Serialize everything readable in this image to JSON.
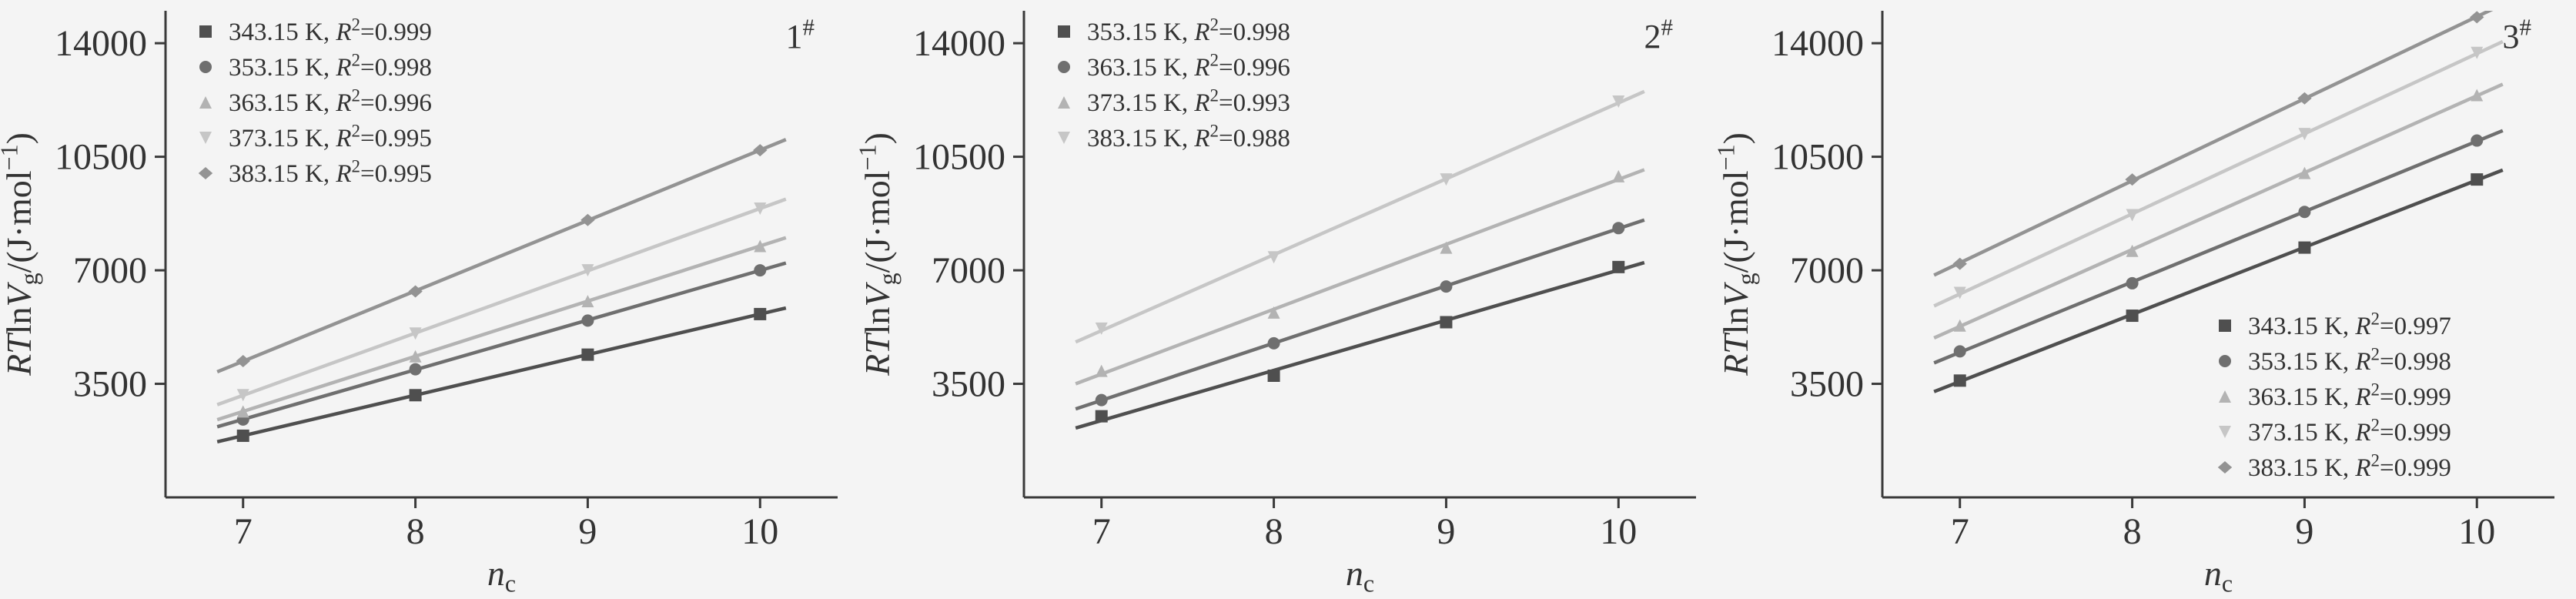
{
  "figure": {
    "background": "#f4f4f4",
    "axis_color": "#3a3a3a",
    "text_color": "#333333"
  },
  "chart_data": [
    {
      "type": "scatter",
      "panel_label": "1#",
      "panel_label_tokens": [
        {
          "t": "1"
        },
        {
          "t": "#",
          "s": "sup"
        }
      ],
      "xlabel": "nc",
      "xlabel_tokens": [
        {
          "t": "n",
          "s": "i"
        },
        {
          "t": "c",
          "s": "sub"
        }
      ],
      "ylabel": "RTlnVg/(J·mol⁻¹)",
      "ylabel_tokens": [
        {
          "t": "RT",
          "s": "i"
        },
        {
          "t": "ln"
        },
        {
          "t": "V",
          "s": "i"
        },
        {
          "t": "g",
          "s": "sub"
        },
        {
          "t": "/(J·mol"
        },
        {
          "t": "−1",
          "s": "sup"
        },
        {
          "t": ")"
        }
      ],
      "xlim": [
        6.55,
        10.45
      ],
      "ylim": [
        0,
        15000
      ],
      "x_ticks": [
        7,
        8,
        9,
        10
      ],
      "y_ticks": [
        3500,
        7000,
        10500,
        14000
      ],
      "grid": false,
      "legend_position": "top-left",
      "x": [
        7,
        8,
        9,
        10
      ],
      "series": [
        {
          "name": "343.15 K",
          "r2": "0.999",
          "label": "343.15 K, R²=0.999",
          "marker": "square",
          "color": "#4f4f4f",
          "values": [
            1900,
            3150,
            4400,
            5650
          ]
        },
        {
          "name": "353.15 K",
          "r2": "0.998",
          "label": "353.15 K, R²=0.998",
          "marker": "circle",
          "color": "#6f6f6f",
          "values": [
            2400,
            3950,
            5450,
            7000
          ]
        },
        {
          "name": "363.15 K",
          "r2": "0.996",
          "label": "363.15 K, R²=0.996",
          "marker": "triangle-up",
          "color": "#b3b3b3",
          "values": [
            2650,
            4350,
            6050,
            7750
          ]
        },
        {
          "name": "373.15 K",
          "r2": "0.995",
          "label": "373.15 K, R²=0.995",
          "marker": "triangle-down",
          "color": "#c6c6c6",
          "values": [
            3150,
            5050,
            7000,
            8900
          ]
        },
        {
          "name": "383.15 K",
          "r2": "0.995",
          "label": "383.15 K, R²=0.995",
          "marker": "diamond",
          "color": "#939393",
          "values": [
            4200,
            6350,
            8550,
            10700
          ]
        }
      ]
    },
    {
      "type": "scatter",
      "panel_label": "2#",
      "panel_label_tokens": [
        {
          "t": "2"
        },
        {
          "t": "#",
          "s": "sup"
        }
      ],
      "xlabel": "nc",
      "xlabel_tokens": [
        {
          "t": "n",
          "s": "i"
        },
        {
          "t": "c",
          "s": "sub"
        }
      ],
      "ylabel": "RTlnVg/(J·mol⁻¹)",
      "ylabel_tokens": [
        {
          "t": "RT",
          "s": "i"
        },
        {
          "t": "ln"
        },
        {
          "t": "V",
          "s": "i"
        },
        {
          "t": "g",
          "s": "sub"
        },
        {
          "t": "/(J·mol"
        },
        {
          "t": "−1",
          "s": "sup"
        },
        {
          "t": ")"
        }
      ],
      "xlim": [
        6.55,
        10.45
      ],
      "ylim": [
        0,
        15000
      ],
      "x_ticks": [
        7,
        8,
        9,
        10
      ],
      "y_ticks": [
        3500,
        7000,
        10500,
        14000
      ],
      "grid": false,
      "legend_position": "top-left",
      "x": [
        7,
        8,
        9,
        10
      ],
      "series": [
        {
          "name": "353.15 K",
          "r2": "0.998",
          "label": "353.15 K, R²=0.998",
          "marker": "square",
          "color": "#4f4f4f",
          "values": [
            2500,
            3750,
            5400,
            7100
          ]
        },
        {
          "name": "363.15 K",
          "r2": "0.996",
          "label": "363.15 K, R²=0.996",
          "marker": "circle",
          "color": "#6f6f6f",
          "values": [
            3000,
            4750,
            6500,
            8300
          ]
        },
        {
          "name": "373.15 K",
          "r2": "0.993",
          "label": "373.15 K, R²=0.993",
          "marker": "triangle-up",
          "color": "#b3b3b3",
          "values": [
            3900,
            5700,
            7700,
            9900
          ]
        },
        {
          "name": "383.15 K",
          "r2": "0.988",
          "label": "383.15 K, R²=0.988",
          "marker": "triangle-down",
          "color": "#c6c6c6",
          "values": [
            5200,
            7400,
            9800,
            12200
          ]
        }
      ]
    },
    {
      "type": "scatter",
      "panel_label": "3#",
      "panel_label_tokens": [
        {
          "t": "3"
        },
        {
          "t": "#",
          "s": "sup"
        }
      ],
      "xlabel": "nc",
      "xlabel_tokens": [
        {
          "t": "n",
          "s": "i"
        },
        {
          "t": "c",
          "s": "sub"
        }
      ],
      "ylabel": "RTlnVg/(J·mol⁻¹)",
      "ylabel_tokens": [
        {
          "t": "RT",
          "s": "i"
        },
        {
          "t": "ln"
        },
        {
          "t": "V",
          "s": "i"
        },
        {
          "t": "g",
          "s": "sub"
        },
        {
          "t": "/(J·mol"
        },
        {
          "t": "−1",
          "s": "sup"
        },
        {
          "t": ")"
        }
      ],
      "xlim": [
        6.55,
        10.45
      ],
      "ylim": [
        0,
        15000
      ],
      "x_ticks": [
        7,
        8,
        9,
        10
      ],
      "y_ticks": [
        3500,
        7000,
        10500,
        14000
      ],
      "grid": false,
      "legend_position": "bottom-right",
      "x": [
        7,
        8,
        9,
        10
      ],
      "series": [
        {
          "name": "343.15 K",
          "r2": "0.997",
          "label": "343.15 K, R²=0.997",
          "marker": "square",
          "color": "#4f4f4f",
          "values": [
            3600,
            5600,
            7700,
            9800
          ]
        },
        {
          "name": "353.15 K",
          "r2": "0.998",
          "label": "353.15 K, R²=0.998",
          "marker": "circle",
          "color": "#6f6f6f",
          "values": [
            4500,
            6600,
            8800,
            11000
          ]
        },
        {
          "name": "363.15 K",
          "r2": "0.999",
          "label": "363.15 K, R²=0.999",
          "marker": "triangle-up",
          "color": "#b3b3b3",
          "values": [
            5300,
            7600,
            10000,
            12400
          ]
        },
        {
          "name": "373.15 K",
          "r2": "0.999",
          "label": "373.15 K, R²=0.999",
          "marker": "triangle-down",
          "color": "#c6c6c6",
          "values": [
            6300,
            8700,
            11200,
            13700
          ]
        },
        {
          "name": "383.15 K",
          "r2": "0.999",
          "label": "383.15 K, R²=0.999",
          "marker": "diamond",
          "color": "#939393",
          "values": [
            7200,
            9800,
            12300,
            14800
          ]
        }
      ]
    }
  ]
}
